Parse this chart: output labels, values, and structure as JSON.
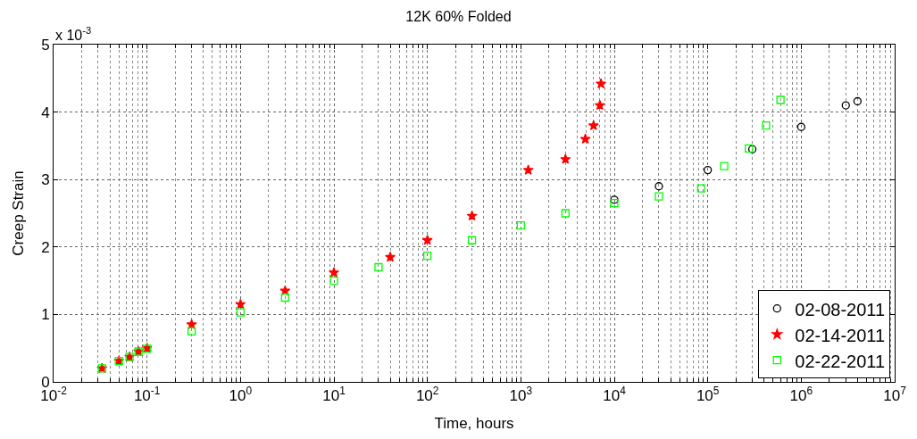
{
  "chart_data": {
    "type": "scatter",
    "title": "12K 60% Folded",
    "xlabel": "Time, hours",
    "ylabel": "Creep Strain",
    "annotations": [
      "x 10$^{-3}$"
    ],
    "log": "x",
    "grid": true,
    "legend": "bottom right",
    "xlim": [
      0.01,
      10000000
    ],
    "ylim": [
      0,
      5
    ],
    "xticks": [
      {
        "value": 0.01,
        "label": "10$^{-2}$"
      },
      {
        "value": 0.1,
        "label": "10$^{-1}$"
      },
      {
        "value": 1,
        "label": "10$^{0}$"
      },
      {
        "value": 10,
        "label": "10$^{1}$"
      },
      {
        "value": 100,
        "label": "10$^{2}$"
      },
      {
        "value": 1000,
        "label": "10$^{3}$"
      },
      {
        "value": 10000,
        "label": "10$^{4}$"
      },
      {
        "value": 100000,
        "label": "10$^{5}$"
      },
      {
        "value": 1000000,
        "label": "10$^{6}$"
      },
      {
        "value": 10000000,
        "label": "10$^{7}$"
      }
    ],
    "yticks": [
      0,
      1,
      2,
      3,
      4,
      5
    ],
    "series": [
      {
        "name": "02-08-2011",
        "color": "#000000",
        "marker": "circle",
        "x": [
          10000,
          30000,
          100000,
          300000,
          1000000,
          3000000,
          4000000
        ],
        "values": [
          2.7,
          2.9,
          3.14,
          3.45,
          3.78,
          4.1,
          4.16
        ]
      },
      {
        "name": "02-14-2011",
        "color": "#ff0000",
        "marker": "star",
        "x": [
          0.033,
          0.05,
          0.065,
          0.081,
          0.1,
          0.3,
          1,
          3,
          10,
          40,
          100,
          300,
          1200,
          3000,
          4900,
          6000,
          7000,
          7200
        ],
        "values": [
          0.2,
          0.31,
          0.37,
          0.45,
          0.5,
          0.85,
          1.15,
          1.35,
          1.62,
          1.85,
          2.1,
          2.46,
          3.14,
          3.3,
          3.6,
          3.8,
          4.1,
          4.42
        ]
      },
      {
        "name": "02-22-2011",
        "color": "#00ff00",
        "marker": "square",
        "x": [
          0.033,
          0.05,
          0.065,
          0.081,
          0.1,
          0.3,
          1,
          3,
          10,
          30,
          100,
          300,
          1000,
          3000,
          10000,
          30000,
          85000,
          150000,
          275000,
          420000,
          600000
        ],
        "values": [
          0.2,
          0.31,
          0.37,
          0.45,
          0.49,
          0.75,
          1.03,
          1.25,
          1.5,
          1.7,
          1.87,
          2.1,
          2.32,
          2.5,
          2.65,
          2.75,
          2.87,
          3.2,
          3.46,
          3.8,
          4.18
        ]
      }
    ]
  }
}
